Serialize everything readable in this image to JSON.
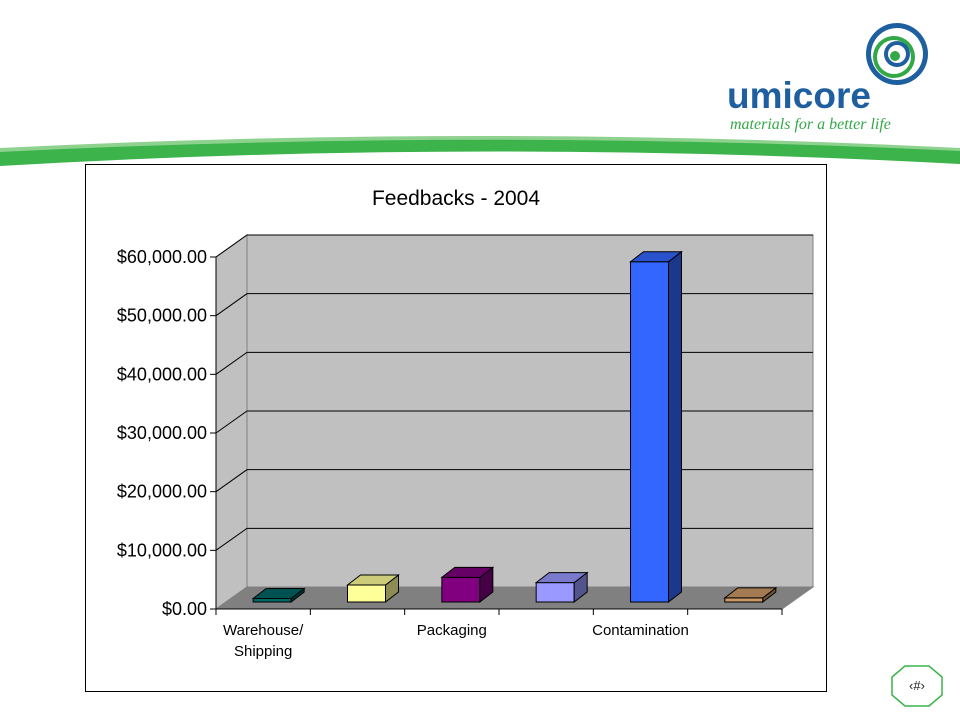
{
  "brand": {
    "name": "umicore",
    "tagline": "materials for a better life",
    "colors": {
      "blue": "#1e5fa0",
      "green": "#33a847",
      "swoosh_green": "#3cb44b"
    }
  },
  "slide_number": "‹#›",
  "chart_data": {
    "type": "bar",
    "style": "3d-clustered-column",
    "title": "Feedbacks - 2004",
    "xlabel": "",
    "ylabel": "",
    "ylim": [
      0,
      60000
    ],
    "y_ticks": [
      0,
      10000,
      20000,
      30000,
      40000,
      50000,
      60000
    ],
    "y_tick_labels": [
      "$0.00",
      "$10,000.00",
      "$20,000.00",
      "$30,000.00",
      "$40,000.00",
      "$50,000.00",
      "$60,000.00"
    ],
    "grid": true,
    "legend": "none",
    "categories": [
      "Warehouse/ Shipping",
      "",
      "Packaging",
      "",
      "Contamination",
      ""
    ],
    "category_label_lines": [
      [
        "Warehouse/",
        "Shipping"
      ],
      [],
      [
        "Packaging"
      ],
      [],
      [
        "Contamination"
      ],
      []
    ],
    "values": [
      600,
      2900,
      4200,
      3300,
      58000,
      700
    ],
    "bar_colors": [
      "#006666",
      "#ffff99",
      "#800080",
      "#9999ff",
      "#3366ff",
      "#cc9966"
    ]
  }
}
